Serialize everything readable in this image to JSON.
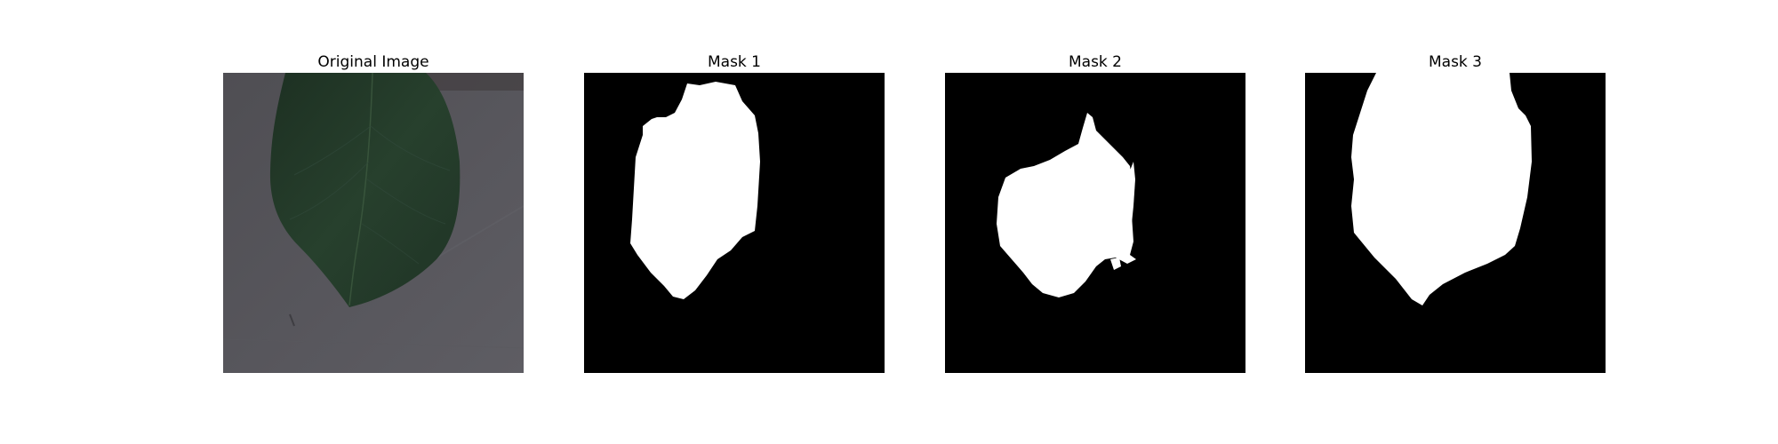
{
  "figure": {
    "panels": [
      {
        "title": "Original Image"
      },
      {
        "title": "Mask 1"
      },
      {
        "title": "Mask 2"
      },
      {
        "title": "Mask 3"
      }
    ]
  },
  "colors": {
    "background": "#ffffff",
    "mask_background": "#000000",
    "mask_foreground": "#ffffff",
    "leaf": "#23392a",
    "surface": "#55545a"
  }
}
